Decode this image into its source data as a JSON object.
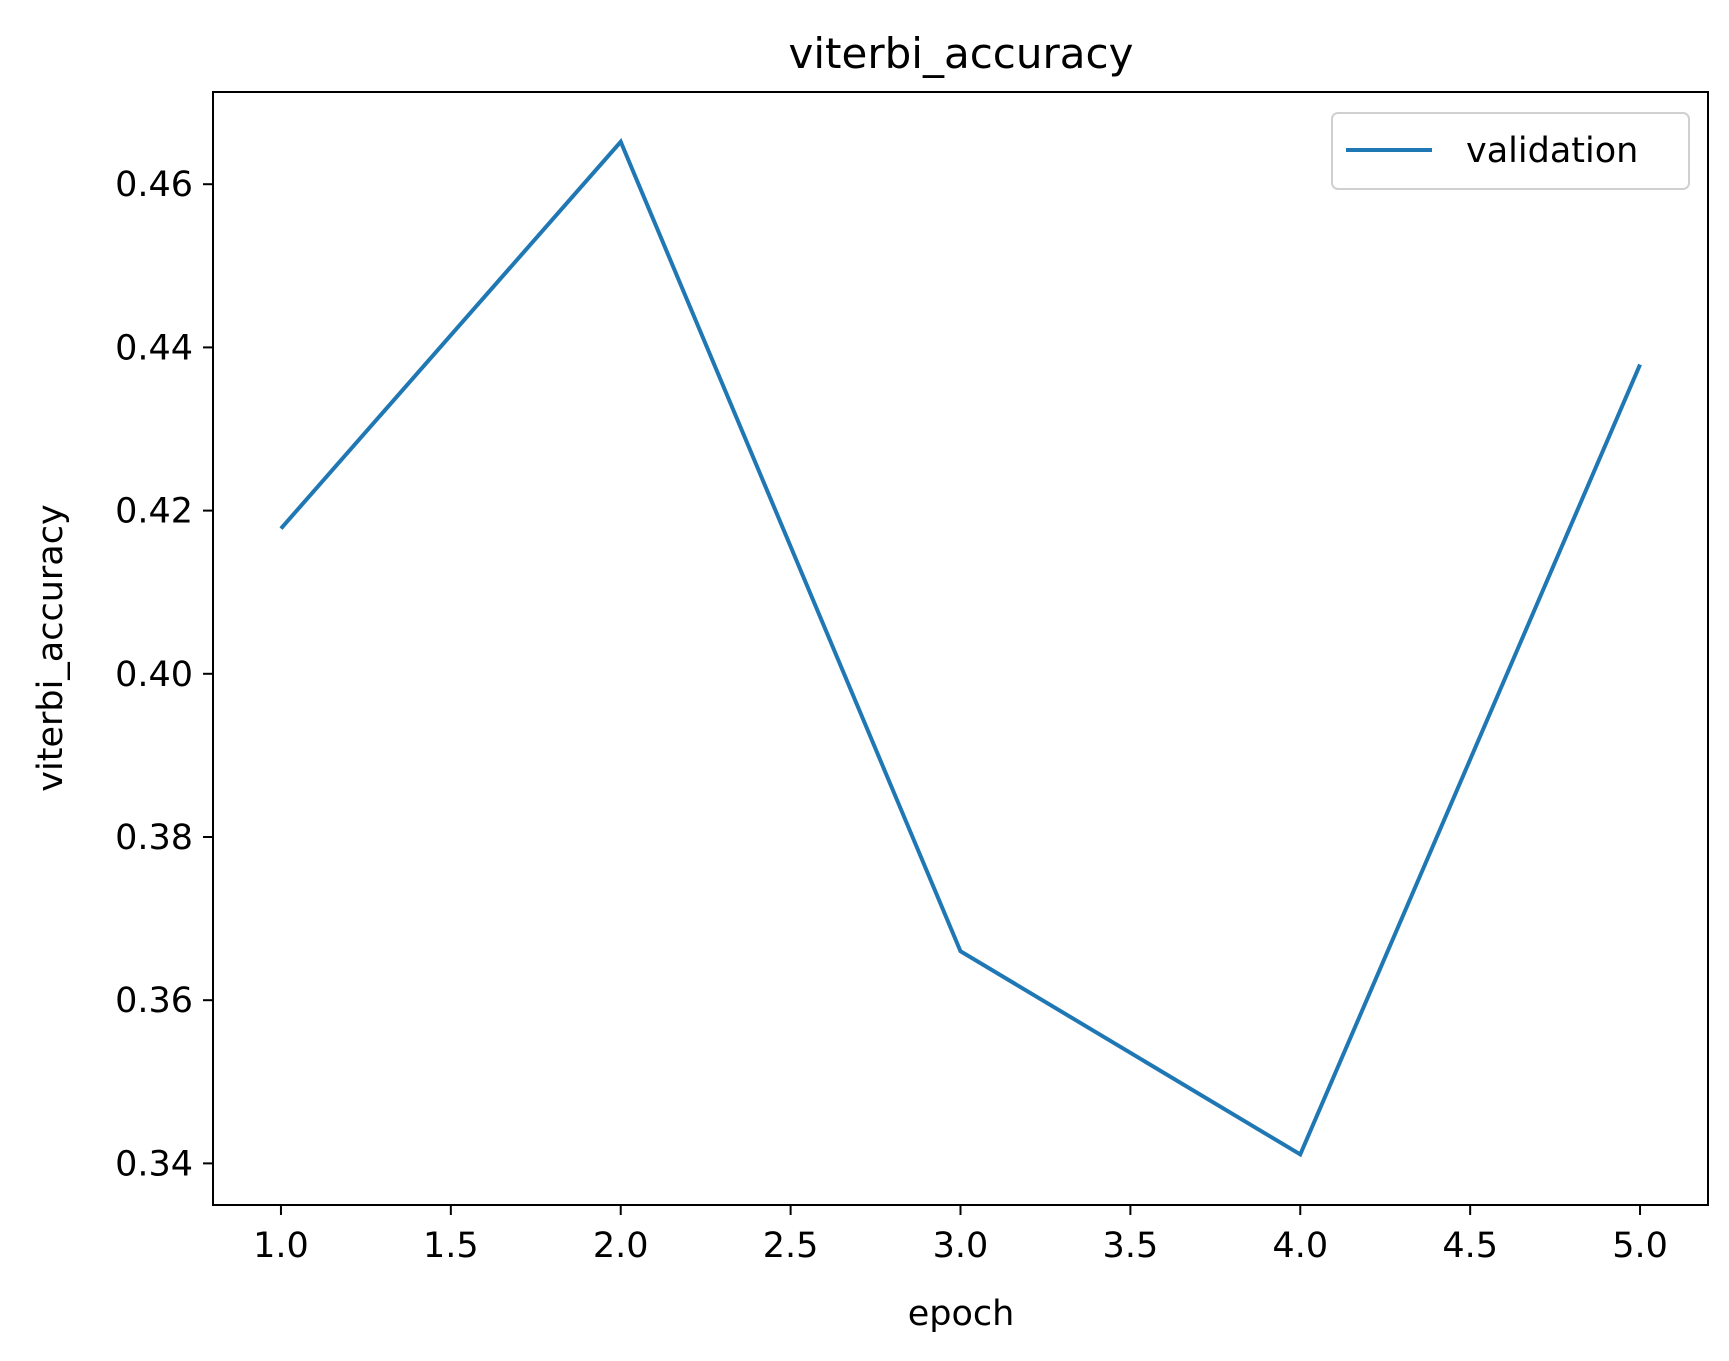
{
  "chart_data": {
    "type": "line",
    "title": "viterbi_accuracy",
    "xlabel": "epoch",
    "ylabel": "viterbi_accuracy",
    "x": [
      1,
      2,
      3,
      4,
      5
    ],
    "series": [
      {
        "name": "validation",
        "color": "#1f77b4",
        "values": [
          0.4178,
          0.4652,
          0.366,
          0.3411,
          0.4379
        ]
      }
    ],
    "xlim": [
      0.8,
      5.2
    ],
    "ylim": [
      0.3349,
      0.4713
    ],
    "xticks": [
      "1.0",
      "1.5",
      "2.0",
      "2.5",
      "3.0",
      "3.5",
      "4.0",
      "4.5",
      "5.0"
    ],
    "yticks": [
      "0.34",
      "0.36",
      "0.38",
      "0.40",
      "0.42",
      "0.44",
      "0.46"
    ],
    "grid": false,
    "legend_position": "upper right"
  }
}
